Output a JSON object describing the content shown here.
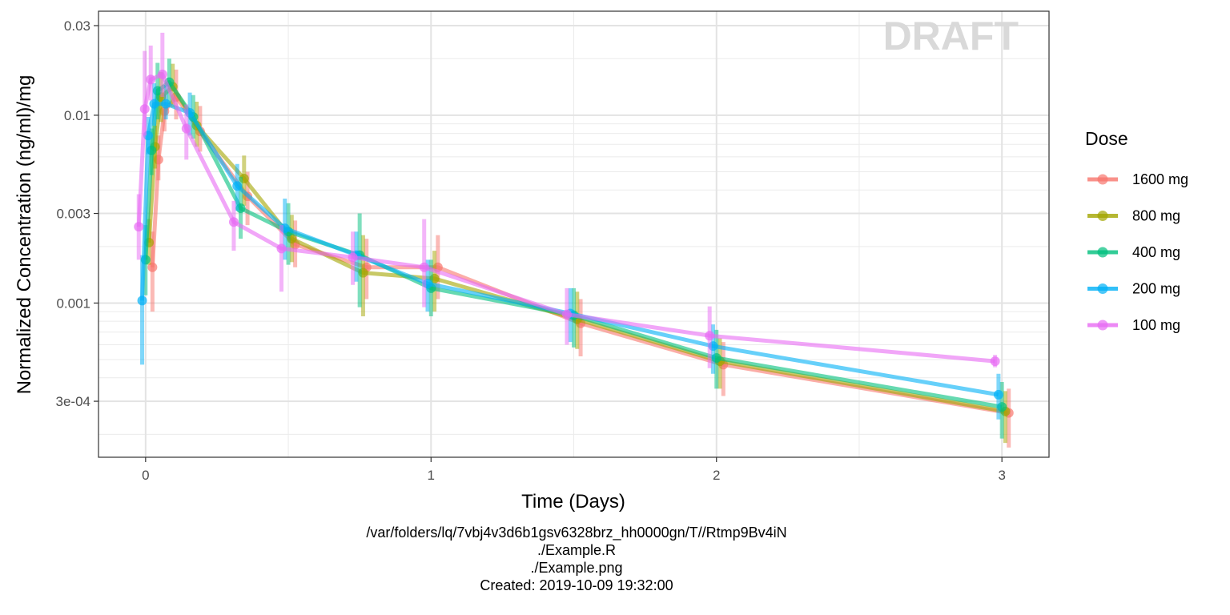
{
  "chart_data": {
    "type": "line",
    "watermark": "DRAFT",
    "xlabel": "Time (Days)",
    "ylabel": "Normalized Concentration (ng/ml)/mg",
    "x_ticks": [
      {
        "value": 0,
        "label": "0"
      },
      {
        "value": 1,
        "label": "1"
      },
      {
        "value": 2,
        "label": "2"
      },
      {
        "value": 3,
        "label": "3"
      }
    ],
    "y_scale": "log10",
    "y_ticks": [
      {
        "value": 0.0003,
        "label": "3e-04"
      },
      {
        "value": 0.001,
        "label": "0.001"
      },
      {
        "value": 0.003,
        "label": "0.003"
      },
      {
        "value": 0.01,
        "label": "0.01"
      },
      {
        "value": 0.03,
        "label": "0.03"
      }
    ],
    "xlim": [
      -0.165,
      3.165
    ],
    "ylim": [
      0.000151,
      0.0358
    ],
    "grid": true,
    "legend": {
      "title": "Dose",
      "position": "right"
    },
    "series": [
      {
        "name": "1600 mg",
        "color": "#F8766D",
        "dodge": 0.024,
        "x": [
          0,
          0.021,
          0.042,
          0.083,
          0.167,
          0.333,
          0.5,
          0.75,
          1,
          1.5,
          2,
          3
        ],
        "y": [
          0.00155,
          0.0058,
          0.0105,
          0.0125,
          0.0082,
          0.0037,
          0.00205,
          0.00155,
          0.00155,
          0.00078,
          0.00047,
          0.00026
        ],
        "lo": [
          0.0009,
          0.0045,
          0.0082,
          0.0095,
          0.0064,
          0.0026,
          0.00155,
          0.00105,
          0.00105,
          0.00052,
          0.00032,
          0.00017
        ],
        "hi": [
          0.0024,
          0.0078,
          0.0145,
          0.0175,
          0.0112,
          0.005,
          0.00275,
          0.0022,
          0.0023,
          0.00105,
          0.00062,
          0.00035
        ]
      },
      {
        "name": "800 mg",
        "color": "#A3A500",
        "dodge": 0.012,
        "x": [
          0,
          0.021,
          0.042,
          0.083,
          0.167,
          0.333,
          0.5,
          0.75,
          1,
          1.5,
          2,
          3
        ],
        "y": [
          0.0021,
          0.0068,
          0.0125,
          0.0142,
          0.0088,
          0.0046,
          0.0022,
          0.00145,
          0.00135,
          0.00082,
          0.00049,
          0.000265
        ],
        "lo": [
          0.0016,
          0.0052,
          0.0092,
          0.011,
          0.0068,
          0.0033,
          0.00165,
          0.00085,
          0.0009,
          0.00057,
          0.00035,
          0.00018
        ],
        "hi": [
          0.0028,
          0.0088,
          0.017,
          0.0188,
          0.0118,
          0.0061,
          0.00295,
          0.0023,
          0.0019,
          0.00115,
          0.00065,
          0.00034
        ]
      },
      {
        "name": "400 mg",
        "color": "#00BF7D",
        "dodge": 0.0,
        "x": [
          0,
          0.021,
          0.042,
          0.083,
          0.167,
          0.333,
          0.5,
          0.75,
          1,
          1.5,
          2,
          3
        ],
        "y": [
          0.0017,
          0.0065,
          0.0135,
          0.015,
          0.0098,
          0.0032,
          0.0024,
          0.0018,
          0.0012,
          0.00086,
          0.00051,
          0.00028
        ],
        "lo": [
          0.0011,
          0.0048,
          0.0095,
          0.0115,
          0.0075,
          0.0022,
          0.0016,
          0.00095,
          0.00085,
          0.00058,
          0.00035,
          0.00019
        ],
        "hi": [
          0.0026,
          0.0085,
          0.019,
          0.02,
          0.0128,
          0.0047,
          0.0034,
          0.003,
          0.0017,
          0.0012,
          0.00072,
          0.00038
        ]
      },
      {
        "name": "200 mg",
        "color": "#00B0F6",
        "dodge": -0.012,
        "x": [
          0,
          0.021,
          0.042,
          0.083,
          0.167,
          0.333,
          0.5,
          0.75,
          1,
          1.5,
          2,
          3
        ],
        "y": [
          0.00103,
          0.0078,
          0.0115,
          0.0115,
          0.0103,
          0.0042,
          0.0025,
          0.0018,
          0.00127,
          0.00088,
          0.00059,
          0.000325
        ],
        "lo": [
          0.00047,
          0.0062,
          0.0088,
          0.0095,
          0.0078,
          0.0031,
          0.0017,
          0.0013,
          0.0009,
          0.00062,
          0.00042,
          0.00024
        ],
        "hi": [
          0.0018,
          0.0098,
          0.0148,
          0.0145,
          0.0132,
          0.0055,
          0.0036,
          0.0024,
          0.0017,
          0.0012,
          0.00077,
          0.00042
        ]
      },
      {
        "name": "100 mg",
        "color": "#E76BF3",
        "dodge": -0.024,
        "x": [
          0,
          0.021,
          0.042,
          0.083,
          0.167,
          0.333,
          0.5,
          0.75,
          1,
          1.5,
          2,
          3
        ],
        "y": [
          0.00255,
          0.0108,
          0.0155,
          0.0165,
          0.0085,
          0.0027,
          0.00195,
          0.00175,
          0.00155,
          0.00087,
          0.00067,
          0.00049
        ],
        "lo": [
          0.0017,
          0.0078,
          0.012,
          0.0125,
          0.0058,
          0.0019,
          0.00115,
          0.00125,
          0.00095,
          0.0006,
          0.00045,
          0.000455
        ],
        "hi": [
          0.0038,
          0.022,
          0.0235,
          0.0275,
          0.0114,
          0.0035,
          0.0026,
          0.0024,
          0.0028,
          0.0012,
          0.00096,
          0.00053
        ]
      }
    ]
  },
  "caption": {
    "lines": [
      "/var/folders/lq/7vbj4v3d6b1gsv6328brz_hh0000gn/T//Rtmp9Bv4iN",
      "./Example.R",
      "./Example.png",
      "Created: 2019-10-09 19:32:00"
    ]
  }
}
